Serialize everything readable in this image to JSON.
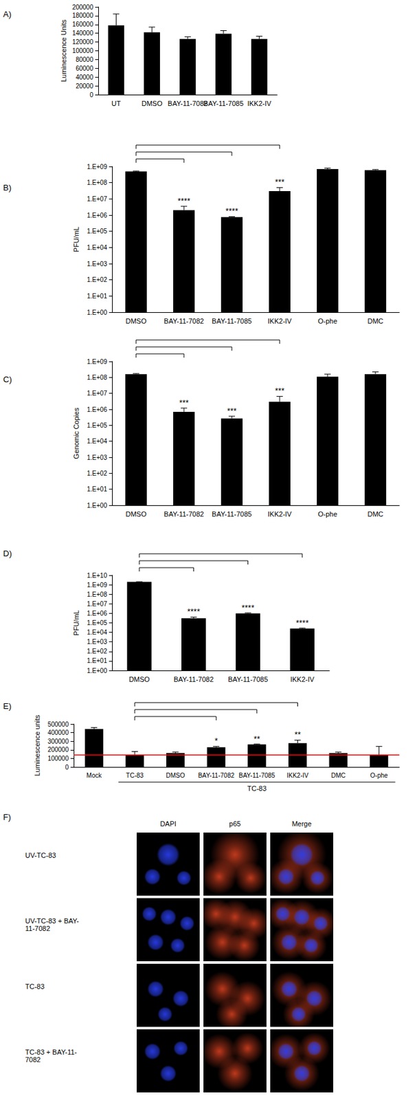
{
  "chart_data": [
    {
      "type": "bar",
      "title": "A)",
      "y_label": "Luminescence Units",
      "categories": [
        "UT",
        "DMSO",
        "BAY-11-7082",
        "BAY-11-7085",
        "IKK2-IV"
      ],
      "values": [
        158000,
        142000,
        127000,
        139000,
        127000
      ],
      "errors": [
        26000,
        12000,
        5000,
        7000,
        6000
      ],
      "color": "#000000",
      "grid": false,
      "ylim": [
        0,
        200000
      ],
      "yticks": [
        0,
        20000,
        40000,
        60000,
        80000,
        100000,
        120000,
        140000,
        160000,
        180000,
        200000
      ]
    },
    {
      "type": "bar",
      "title": "B)",
      "y_label": "PFU/mL",
      "log": "y",
      "categories": [
        "DMSO",
        "BAY-11-7082",
        "BAY-11-7085",
        "IKK2-IV",
        "O-phe",
        "DMC"
      ],
      "values": [
        500000000,
        2000000,
        750000,
        30000000,
        700000000,
        600000000
      ],
      "errors": [
        30000000,
        1500000,
        50000,
        20000000,
        100000000,
        50000000
      ],
      "color": "#000000",
      "grid": false,
      "ylim": [
        1,
        1000000000
      ],
      "yticks": [
        {
          "value": 1,
          "label": "1.E+00"
        },
        {
          "value": 10,
          "label": "1.E+01"
        },
        {
          "value": 100,
          "label": "1.E+02"
        },
        {
          "value": 1000,
          "label": "1.E+03"
        },
        {
          "value": 10000,
          "label": "1.E+04"
        },
        {
          "value": 100000,
          "label": "1.E+05"
        },
        {
          "value": 1000000,
          "label": "1.E+06"
        },
        {
          "value": 10000000,
          "label": "1.E+07"
        },
        {
          "value": 100000000,
          "label": "1.E+08"
        },
        {
          "value": 1000000000,
          "label": "1.E+09"
        }
      ],
      "annotations": [
        {
          "category": "BAY-11-7082",
          "text": "****"
        },
        {
          "category": "BAY-11-7085",
          "text": "****"
        },
        {
          "category": "IKK2-IV",
          "text": "***"
        }
      ],
      "comparisons": [
        {
          "from": "DMSO",
          "to": "BAY-11-7082"
        },
        {
          "from": "DMSO",
          "to": "BAY-11-7085"
        },
        {
          "from": "DMSO",
          "to": "IKK2-IV"
        }
      ]
    },
    {
      "type": "bar",
      "title": "C)",
      "y_label": "Genomic Copies",
      "log": "y",
      "categories": [
        "DMSO",
        "BAY-11-7082",
        "BAY-11-7085",
        "IKK2-IV",
        "O-phe",
        "DMC"
      ],
      "values": [
        160000000,
        700000,
        270000,
        3000000,
        110000000,
        160000000
      ],
      "errors": [
        15000000,
        500000,
        100000,
        3500000,
        50000000,
        60000000
      ],
      "color": "#000000",
      "grid": false,
      "ylim": [
        1,
        1000000000
      ],
      "yticks": [
        {
          "value": 1,
          "label": "1.E+00"
        },
        {
          "value": 10,
          "label": "1.E+01"
        },
        {
          "value": 100,
          "label": "1.E+02"
        },
        {
          "value": 1000,
          "label": "1.E+03"
        },
        {
          "value": 10000,
          "label": "1.E+04"
        },
        {
          "value": 100000,
          "label": "1.E+05"
        },
        {
          "value": 1000000,
          "label": "1.E+06"
        },
        {
          "value": 10000000,
          "label": "1.E+07"
        },
        {
          "value": 100000000,
          "label": "1.E+08"
        },
        {
          "value": 1000000000,
          "label": "1.E+09"
        }
      ],
      "annotations": [
        {
          "category": "BAY-11-7082",
          "text": "***"
        },
        {
          "category": "BAY-11-7085",
          "text": "***"
        },
        {
          "category": "IKK2-IV",
          "text": "***"
        }
      ],
      "comparisons": [
        {
          "from": "DMSO",
          "to": "BAY-11-7082"
        },
        {
          "from": "DMSO",
          "to": "BAY-11-7085"
        },
        {
          "from": "DMSO",
          "to": "IKK2-IV"
        }
      ]
    },
    {
      "type": "bar",
      "title": "D)",
      "y_label": "PFU/mL",
      "log": "y",
      "categories": [
        "DMSO",
        "BAY-11-7082",
        "BAY-11-7085",
        "IKK2-IV"
      ],
      "values": [
        2000000000,
        300000,
        1000000,
        25000
      ],
      "errors": [
        100000000,
        100000,
        100000,
        3000
      ],
      "color": "#000000",
      "grid": false,
      "ylim": [
        1,
        10000000000
      ],
      "yticks": [
        {
          "value": 1,
          "label": "1.E+00"
        },
        {
          "value": 10,
          "label": "1.E+01"
        },
        {
          "value": 100,
          "label": "1.E+02"
        },
        {
          "value": 1000,
          "label": "1.E+03"
        },
        {
          "value": 10000,
          "label": "1.E+04"
        },
        {
          "value": 100000,
          "label": "1.E+05"
        },
        {
          "value": 1000000,
          "label": "1.E+06"
        },
        {
          "value": 10000000,
          "label": "1.E+07"
        },
        {
          "value": 100000000,
          "label": "1.E+08"
        },
        {
          "value": 1000000000,
          "label": "1.E+09"
        },
        {
          "value": 10000000000,
          "label": "1.E+10"
        }
      ],
      "annotations": [
        {
          "category": "BAY-11-7082",
          "text": "****"
        },
        {
          "category": "BAY-11-7085",
          "text": "****"
        },
        {
          "category": "IKK2-IV",
          "text": "****"
        }
      ],
      "comparisons": [
        {
          "from": "DMSO",
          "to": "BAY-11-7082"
        },
        {
          "from": "DMSO",
          "to": "BAY-11-7085"
        },
        {
          "from": "DMSO",
          "to": "IKK2-IV"
        }
      ]
    },
    {
      "type": "bar",
      "title": "E)",
      "y_label": "Luminescence units",
      "categories": [
        "Mock",
        "TC-83",
        "DMSO",
        "BAY-11-7082",
        "BAY-11-7085",
        "IKK2-IV",
        "DMC",
        "O-phe"
      ],
      "values": [
        443000,
        140000,
        163000,
        230000,
        262000,
        278000,
        162000,
        140000
      ],
      "errors": [
        17000,
        40000,
        12000,
        10000,
        5000,
        35000,
        12000,
        100000
      ],
      "color": "#000000",
      "grid": false,
      "ylim": [
        0,
        500000
      ],
      "yticks": [
        0,
        100000,
        200000,
        300000,
        400000,
        500000
      ],
      "reference_line": {
        "value": 140000,
        "color": "#ff0000"
      },
      "group_label": {
        "text": "TC-83",
        "from": "TC-83",
        "to": "O-phe"
      },
      "annotations": [
        {
          "category": "BAY-11-7082",
          "text": "*"
        },
        {
          "category": "BAY-11-7085",
          "text": "**"
        },
        {
          "category": "IKK2-IV",
          "text": "**"
        }
      ],
      "comparisons": [
        {
          "from": "TC-83",
          "to": "BAY-11-7082"
        },
        {
          "from": "TC-83",
          "to": "BAY-11-7085"
        },
        {
          "from": "TC-83",
          "to": "IKK2-IV"
        }
      ]
    }
  ],
  "panel_f": {
    "title": "F)",
    "columns": [
      "DAPI",
      "p65",
      "Merge"
    ],
    "rows": [
      "UV-TC-83",
      "UV-TC-83 + BAY-11-7082",
      "TC-83",
      "TC-83 + BAY-11-7082"
    ]
  }
}
